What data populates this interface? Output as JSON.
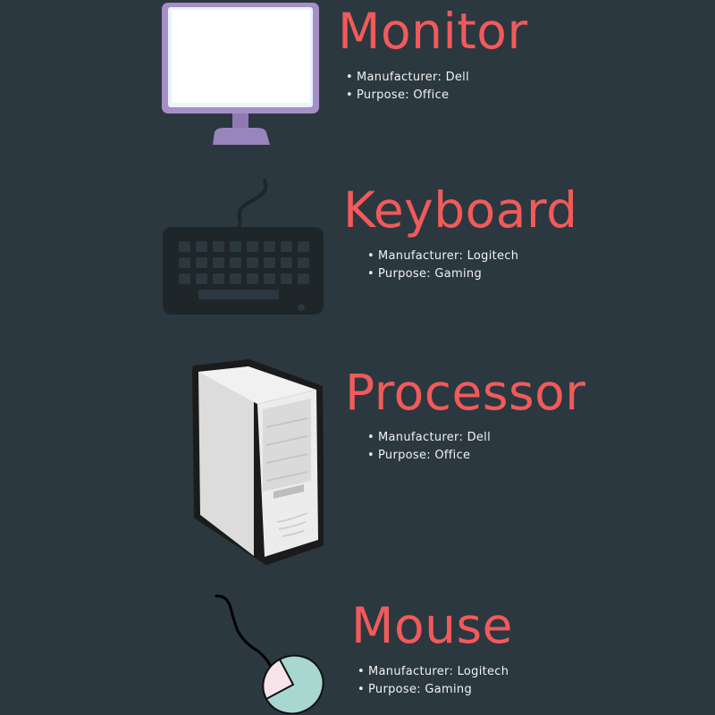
{
  "items": [
    {
      "title": "Monitor",
      "icon": "monitor-icon",
      "specs": [
        "Manufacturer: Dell",
        "Purpose: Office"
      ]
    },
    {
      "title": "Keyboard",
      "icon": "keyboard-icon",
      "specs": [
        "Manufacturer: Logitech",
        "Purpose: Gaming"
      ]
    },
    {
      "title": "Processor",
      "icon": "computer-tower-icon",
      "specs": [
        "Manufacturer: Dell",
        "Purpose: Office"
      ]
    },
    {
      "title": "Mouse",
      "icon": "mouse-icon",
      "specs": [
        "Manufacturer: Logitech",
        "Purpose: Gaming"
      ]
    }
  ],
  "colors": {
    "background": "#2b3840",
    "title": "#f25a5a",
    "text": "#f2f2f2",
    "monitor_frame": "#a68ec6",
    "keyboard": "#1f2629",
    "tower": "#e9e9e9",
    "mouse_left": "#f6e4ea",
    "mouse_right": "#a7d7cf"
  }
}
